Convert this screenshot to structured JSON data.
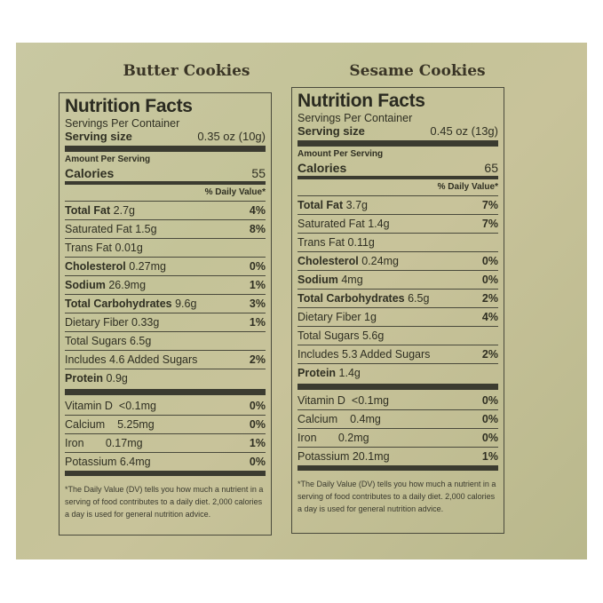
{
  "products": [
    {
      "title": "Butter Cookies",
      "label": {
        "heading": "Nutrition Facts",
        "servings_per_container": "Servings Per Container",
        "serving_size_label": "Serving size",
        "serving_size_value": "0.35 oz (10g)",
        "amount_per_serving": "Amount Per Serving",
        "calories_label": "Calories",
        "calories_value": "55",
        "daily_value_header": "% Daily Value*",
        "nutrients": [
          {
            "name": "Total Fat",
            "amount": "2.7g",
            "dv": "4%"
          },
          {
            "name": "Saturated Fat",
            "amount": "1.5g",
            "dv": "8%"
          },
          {
            "name": "Trans Fat",
            "amount": "0.01g",
            "dv": ""
          },
          {
            "name": "Cholesterol",
            "amount": "0.27mg",
            "dv": "0%"
          },
          {
            "name": "Sodium",
            "amount": "26.9mg",
            "dv": "1%"
          },
          {
            "name": "Total Carbohydrates",
            "amount": "9.6g",
            "dv": "3%"
          },
          {
            "name": "Dietary Fiber",
            "amount": "0.33g",
            "dv": "1%"
          },
          {
            "name": "Total Sugars",
            "amount": "6.5g",
            "dv": ""
          },
          {
            "name": "Includes 4.6 Added Sugars",
            "amount": "",
            "dv": "2%"
          },
          {
            "name": "Protein",
            "amount": "0.9g",
            "dv": ""
          }
        ],
        "vitamins": [
          {
            "name": "Vitamin D",
            "amount": "<0.1mg",
            "dv": "0%"
          },
          {
            "name": "Calcium",
            "amount": "5.25mg",
            "dv": "0%"
          },
          {
            "name": "Iron",
            "amount": "0.17mg",
            "dv": "1%"
          },
          {
            "name": "Potassium",
            "amount": "6.4mg",
            "dv": "0%"
          }
        ],
        "footnote": "*The Daily Value (DV) tells you how much a nutrient in a serving of food contributes to a daily diet. 2,000 calories a day is used for general nutrition advice."
      }
    },
    {
      "title": "Sesame Cookies",
      "label": {
        "heading": "Nutrition Facts",
        "servings_per_container": "Servings Per Container",
        "serving_size_label": "Serving size",
        "serving_size_value": "0.45 oz (13g)",
        "amount_per_serving": "Amount Per Serving",
        "calories_label": "Calories",
        "calories_value": "65",
        "daily_value_header": "% Daily Value*",
        "nutrients": [
          {
            "name": "Total Fat",
            "amount": "3.7g",
            "dv": "7%"
          },
          {
            "name": "Saturated Fat",
            "amount": "1.4g",
            "dv": "7%"
          },
          {
            "name": "Trans Fat",
            "amount": "0.11g",
            "dv": ""
          },
          {
            "name": "Cholesterol",
            "amount": "0.24mg",
            "dv": "0%"
          },
          {
            "name": "Sodium",
            "amount": "4mg",
            "dv": "0%"
          },
          {
            "name": "Total Carbohydrates",
            "amount": "6.5g",
            "dv": "2%"
          },
          {
            "name": "Dietary Fiber",
            "amount": "1g",
            "dv": "4%"
          },
          {
            "name": "Total Sugars",
            "amount": "5.6g",
            "dv": ""
          },
          {
            "name": "Includes 5.3 Added Sugars",
            "amount": "",
            "dv": "2%"
          },
          {
            "name": "Protein",
            "amount": "1.4g",
            "dv": ""
          }
        ],
        "vitamins": [
          {
            "name": "Vitamin D",
            "amount": "<0.1mg",
            "dv": "0%"
          },
          {
            "name": "Calcium",
            "amount": "0.4mg",
            "dv": "0%"
          },
          {
            "name": "Iron",
            "amount": "0.2mg",
            "dv": "0%"
          },
          {
            "name": "Potassium",
            "amount": "20.1mg",
            "dv": "1%"
          }
        ],
        "footnote": "*The Daily Value (DV) tells you how much a nutrient in a serving of food contributes to a daily diet. 2,000 calories a day is used for general nutrition advice."
      }
    }
  ]
}
